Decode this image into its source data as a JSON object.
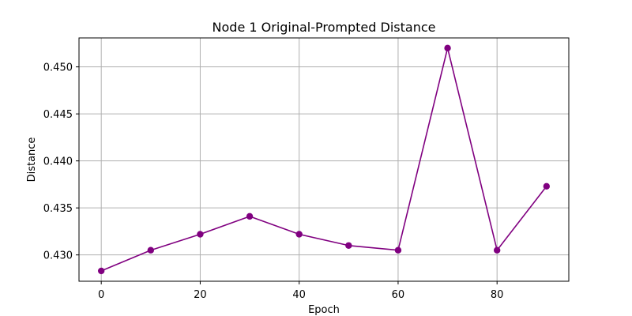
{
  "chart_data": {
    "type": "line",
    "title": "Node 1 Original-Prompted Distance",
    "xlabel": "Epoch",
    "ylabel": "Distance",
    "x": [
      0,
      10,
      20,
      30,
      40,
      50,
      60,
      70,
      80,
      90
    ],
    "series": [
      {
        "values": [
          0.4283,
          0.4305,
          0.4322,
          0.4341,
          0.4322,
          0.431,
          0.4305,
          0.452,
          0.4305,
          0.4373
        ],
        "color": "#800080",
        "marker": "circle"
      }
    ],
    "xticks": [
      0,
      20,
      40,
      60,
      80
    ],
    "xtick_labels": [
      "0",
      "20",
      "40",
      "60",
      "80"
    ],
    "yticks": [
      0.43,
      0.435,
      0.44,
      0.445,
      0.45
    ],
    "ytick_labels": [
      "0.430",
      "0.435",
      "0.440",
      "0.445",
      "0.450"
    ],
    "xlim": [
      -4.5,
      94.5
    ],
    "ylim": [
      0.4272,
      0.45308
    ],
    "grid": true,
    "legend": false
  }
}
